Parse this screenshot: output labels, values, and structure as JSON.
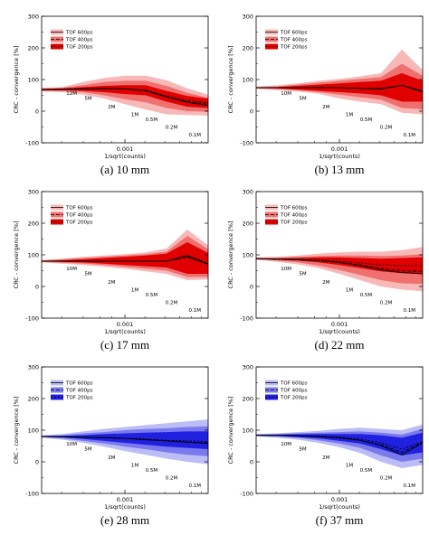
{
  "colors": {
    "red": {
      "dark": "#e00000",
      "mid": "#f07070",
      "light": "#f7b8b8",
      "line": "#000000"
    },
    "blue": {
      "dark": "#2020e0",
      "mid": "#7a7aee",
      "light": "#bcbcf6",
      "line": "#000000"
    }
  },
  "chart_data": [
    {
      "type": "area",
      "caption": "(a) 10 mm",
      "palette": "red",
      "ylabel": "CRC - convergence [%]",
      "xlabel": "1/sqrt(counts)",
      "ylim": [
        -100,
        300
      ],
      "yticks": [
        "300",
        "200",
        "100",
        "0",
        "-100"
      ],
      "xtick_label": "0.001",
      "legend": [
        "TOF 600ps",
        "TOF 400ps",
        "TOF 200ps"
      ],
      "count_labels": [
        "12M",
        "5M",
        "2M",
        "1M",
        "0.5M",
        "0.2M",
        "0.1M"
      ],
      "x": [
        0,
        1,
        2,
        3,
        4,
        5,
        6,
        7,
        8
      ],
      "series": [
        {
          "name": "TOF 600ps",
          "mean": [
            68,
            68,
            70,
            72,
            70,
            66,
            45,
            28,
            18
          ],
          "lower": [
            62,
            60,
            52,
            40,
            22,
            5,
            -10,
            -12,
            -14
          ],
          "upper": [
            74,
            76,
            92,
            105,
            112,
            112,
            98,
            72,
            52
          ]
        },
        {
          "name": "TOF 400ps",
          "mean": [
            68,
            69,
            71,
            72,
            70,
            64,
            45,
            30,
            22
          ],
          "lower": [
            64,
            64,
            60,
            50,
            38,
            28,
            10,
            0,
            -2
          ],
          "upper": [
            72,
            74,
            82,
            92,
            96,
            96,
            80,
            58,
            42
          ]
        },
        {
          "name": "TOF 200ps",
          "mean": [
            68,
            69,
            70,
            70,
            70,
            66,
            48,
            34,
            26
          ],
          "lower": [
            66,
            66,
            64,
            60,
            54,
            50,
            30,
            14,
            10
          ],
          "upper": [
            70,
            72,
            76,
            80,
            82,
            82,
            64,
            48,
            40
          ]
        }
      ]
    },
    {
      "type": "area",
      "caption": "(b) 13 mm",
      "palette": "red",
      "ylabel": "CRC - convergence [%]",
      "xlabel": "1/sqrt(counts)",
      "ylim": [
        -100,
        300
      ],
      "yticks": [
        "300",
        "200",
        "100",
        "0",
        "-100"
      ],
      "xtick_label": "0.001",
      "legend": [
        "TOF 600ps",
        "TOF 400ps",
        "TOF 200ps"
      ],
      "count_labels": [
        "10M",
        "5M",
        "2M",
        "1M",
        "0.5M",
        "0.2M",
        "0.1M"
      ],
      "x": [
        0,
        1,
        2,
        3,
        4,
        5,
        6,
        7,
        8
      ],
      "series": [
        {
          "name": "TOF 600ps",
          "mean": [
            74,
            74,
            74,
            75,
            74,
            72,
            70,
            82,
            62
          ],
          "lower": [
            70,
            66,
            62,
            55,
            40,
            30,
            22,
            -5,
            -10
          ],
          "upper": [
            78,
            82,
            88,
            96,
            102,
            110,
            120,
            195,
            130
          ]
        },
        {
          "name": "TOF 400ps",
          "mean": [
            74,
            74,
            74,
            75,
            74,
            72,
            70,
            82,
            60
          ],
          "lower": [
            72,
            70,
            66,
            60,
            52,
            44,
            36,
            10,
            6
          ],
          "upper": [
            76,
            78,
            84,
            90,
            96,
            102,
            108,
            150,
            112
          ]
        },
        {
          "name": "TOF 200ps",
          "mean": [
            74,
            74,
            74,
            75,
            74,
            72,
            72,
            82,
            64
          ],
          "lower": [
            73,
            72,
            68,
            64,
            60,
            56,
            50,
            30,
            30
          ],
          "upper": [
            75,
            76,
            80,
            84,
            88,
            92,
            96,
            120,
            96
          ]
        }
      ]
    },
    {
      "type": "area",
      "caption": "(c) 17 mm",
      "palette": "red",
      "ylabel": "CRC - convergence [%]",
      "xlabel": "1/sqrt(counts)",
      "ylim": [
        -100,
        300
      ],
      "yticks": [
        "300",
        "200",
        "100",
        "0",
        "-100"
      ],
      "xtick_label": "0.001",
      "legend": [
        "TOF 600ps",
        "TOF 400ps",
        "TOF 200ps"
      ],
      "count_labels": [
        "10M",
        "5M",
        "2M",
        "1M",
        "0.5M",
        "0.2M",
        "0.1M"
      ],
      "x": [
        0,
        1,
        2,
        3,
        4,
        5,
        6,
        7,
        8
      ],
      "series": [
        {
          "name": "TOF 600ps",
          "mean": [
            80,
            80,
            80,
            80,
            80,
            80,
            80,
            98,
            72
          ],
          "lower": [
            76,
            72,
            68,
            62,
            56,
            48,
            40,
            20,
            22
          ],
          "upper": [
            84,
            88,
            94,
            98,
            102,
            108,
            120,
            180,
            130
          ]
        },
        {
          "name": "TOF 400ps",
          "mean": [
            80,
            80,
            80,
            80,
            80,
            80,
            80,
            95,
            70
          ],
          "lower": [
            78,
            75,
            72,
            68,
            62,
            56,
            50,
            30,
            30
          ],
          "upper": [
            82,
            86,
            90,
            94,
            98,
            102,
            110,
            160,
            118
          ]
        },
        {
          "name": "TOF 200ps",
          "mean": [
            80,
            80,
            80,
            80,
            80,
            80,
            80,
            92,
            70
          ],
          "lower": [
            79,
            78,
            76,
            72,
            68,
            64,
            60,
            40,
            40
          ],
          "upper": [
            81,
            83,
            86,
            90,
            94,
            98,
            104,
            140,
            106
          ]
        }
      ]
    },
    {
      "type": "area",
      "caption": "(d) 22 mm",
      "palette": "red",
      "ylabel": "CRC - convergence [%]",
      "xlabel": "1/sqrt(counts)",
      "ylim": [
        -100,
        300
      ],
      "yticks": [
        "300",
        "200",
        "100",
        "0",
        "-100"
      ],
      "xtick_label": "0.001",
      "legend": [
        "TOF 600ps",
        "TOF 400ps",
        "TOF 200ps"
      ],
      "count_labels": [
        "10M",
        "5M",
        "2M",
        "1M",
        "0.5M",
        "0.2M",
        "0.1M"
      ],
      "x": [
        0,
        1,
        2,
        3,
        4,
        5,
        6,
        7,
        8
      ],
      "series": [
        {
          "name": "TOF 600ps",
          "mean": [
            88,
            86,
            84,
            82,
            76,
            66,
            52,
            44,
            40
          ],
          "lower": [
            84,
            78,
            70,
            58,
            40,
            20,
            0,
            -10,
            -15
          ],
          "upper": [
            92,
            94,
            98,
            104,
            108,
            110,
            110,
            115,
            125
          ]
        },
        {
          "name": "TOF 400ps",
          "mean": [
            88,
            86,
            85,
            82,
            76,
            68,
            56,
            50,
            48
          ],
          "lower": [
            86,
            82,
            76,
            66,
            52,
            36,
            20,
            10,
            8
          ],
          "upper": [
            90,
            90,
            94,
            96,
            98,
            98,
            96,
            98,
            102
          ]
        },
        {
          "name": "TOF 200ps",
          "mean": [
            88,
            87,
            86,
            84,
            80,
            74,
            68,
            66,
            66
          ],
          "lower": [
            87,
            85,
            82,
            76,
            68,
            58,
            48,
            42,
            40
          ],
          "upper": [
            89,
            89,
            90,
            92,
            92,
            90,
            88,
            90,
            92
          ]
        }
      ]
    },
    {
      "type": "area",
      "caption": "(e) 28 mm",
      "palette": "blue",
      "ylabel": "CRC - convergence [%]",
      "xlabel": "1/sqrt(counts)",
      "ylim": [
        -100,
        300
      ],
      "yticks": [
        "300",
        "200",
        "100",
        "0",
        "-100"
      ],
      "xtick_label": "0.001",
      "legend": [
        "TOF 600ps",
        "TOF 400ps",
        "TOF 200ps"
      ],
      "count_labels": [
        "10M",
        "5M",
        "2M",
        "1M",
        "0.5M",
        "0.2M",
        "0.1M"
      ],
      "x": [
        0,
        1,
        2,
        3,
        4,
        5,
        6,
        7,
        8
      ],
      "series": [
        {
          "name": "TOF 600ps",
          "mean": [
            80,
            79,
            78,
            76,
            74,
            70,
            66,
            62,
            58
          ],
          "lower": [
            76,
            70,
            60,
            48,
            34,
            22,
            10,
            0,
            -8
          ],
          "upper": [
            84,
            88,
            96,
            104,
            110,
            116,
            122,
            128,
            134
          ]
        },
        {
          "name": "TOF 400ps",
          "mean": [
            80,
            79,
            78,
            76,
            74,
            70,
            66,
            62,
            60
          ],
          "lower": [
            78,
            74,
            66,
            58,
            48,
            40,
            30,
            22,
            18
          ],
          "upper": [
            82,
            84,
            90,
            94,
            100,
            104,
            106,
            110,
            112
          ]
        },
        {
          "name": "TOF 200ps",
          "mean": [
            80,
            79,
            78,
            77,
            75,
            72,
            68,
            66,
            64
          ],
          "lower": [
            79,
            77,
            72,
            66,
            60,
            54,
            48,
            44,
            40
          ],
          "upper": [
            81,
            82,
            84,
            88,
            90,
            92,
            94,
            96,
            96
          ]
        }
      ]
    },
    {
      "type": "area",
      "caption": "(f) 37 mm",
      "palette": "blue",
      "ylabel": "CRC - convergence [%]",
      "xlabel": "1/sqrt(counts)",
      "ylim": [
        -100,
        300
      ],
      "yticks": [
        "300",
        "200",
        "100",
        "0",
        "-100"
      ],
      "xtick_label": "0.001",
      "legend": [
        "TOF 600ps",
        "TOF 400ps",
        "TOF 200ps"
      ],
      "count_labels": [
        "10M",
        "5M",
        "2M",
        "1M",
        "0.5M",
        "0.2M",
        "0.1M"
      ],
      "x": [
        0,
        1,
        2,
        3,
        4,
        5,
        6,
        7,
        8
      ],
      "series": [
        {
          "name": "TOF 600ps",
          "mean": [
            84,
            83,
            82,
            80,
            76,
            68,
            52,
            22,
            60
          ],
          "lower": [
            80,
            76,
            70,
            60,
            46,
            28,
            0,
            -20,
            -10
          ],
          "upper": [
            88,
            90,
            94,
            98,
            104,
            108,
            104,
            100,
            118
          ]
        },
        {
          "name": "TOF 400ps",
          "mean": [
            84,
            83,
            82,
            80,
            76,
            68,
            54,
            30,
            62
          ],
          "lower": [
            82,
            80,
            76,
            68,
            58,
            44,
            20,
            0,
            10
          ],
          "upper": [
            86,
            88,
            90,
            92,
            94,
            96,
            92,
            86,
            104
          ]
        },
        {
          "name": "TOF 200ps",
          "mean": [
            84,
            83,
            82,
            81,
            78,
            72,
            60,
            40,
            64
          ],
          "lower": [
            83,
            82,
            78,
            74,
            66,
            58,
            40,
            20,
            30
          ],
          "upper": [
            85,
            86,
            87,
            88,
            88,
            88,
            84,
            76,
            92
          ]
        }
      ]
    }
  ]
}
